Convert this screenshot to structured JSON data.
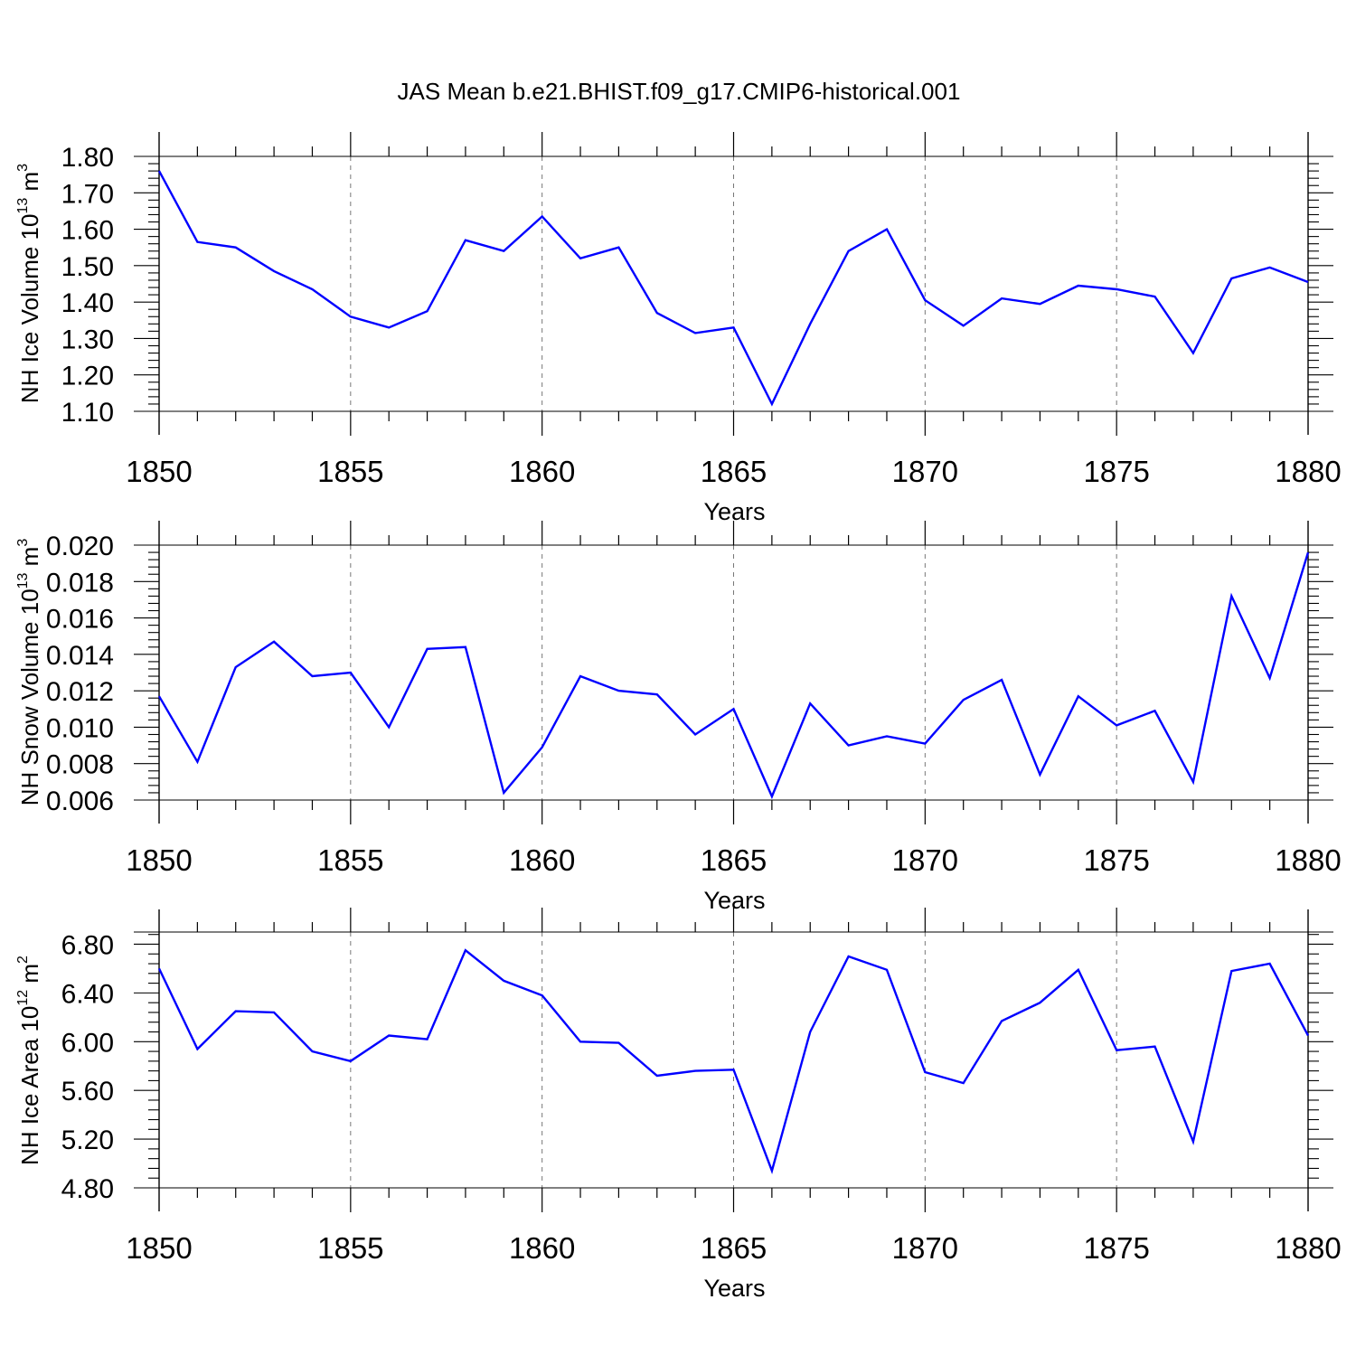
{
  "figure_title": "JAS Mean b.e21.BHIST.f09_g17.CMIP6-historical.001",
  "line_color": "#0000ff",
  "chart_data": [
    {
      "type": "line",
      "title": "JAS Mean b.e21.BHIST.f09_g17.CMIP6-historical.001",
      "xlabel": "Years",
      "ylabel": "NH Ice Volume 10",
      "ylabel_exp": "13",
      "ylabel_unit": " m",
      "ylabel_unit_exp": "3",
      "xlim": [
        1850,
        1880
      ],
      "ylim": [
        1.1,
        1.8
      ],
      "yticks": [
        1.1,
        1.2,
        1.3,
        1.4,
        1.5,
        1.6,
        1.7,
        1.8
      ],
      "ytick_labels": [
        "1.10",
        "1.20",
        "1.30",
        "1.40",
        "1.50",
        "1.60",
        "1.70",
        "1.80"
      ],
      "xticks": [
        1850,
        1855,
        1860,
        1865,
        1870,
        1875,
        1880
      ],
      "xtick_labels": [
        "1850",
        "1855",
        "1860",
        "1865",
        "1870",
        "1875",
        "1880"
      ],
      "grid": "vertical dashed at major x ticks",
      "series": [
        {
          "name": "NH Ice Volume",
          "x": [
            1850,
            1851,
            1852,
            1853,
            1854,
            1855,
            1856,
            1857,
            1858,
            1859,
            1860,
            1861,
            1862,
            1863,
            1864,
            1865,
            1866,
            1867,
            1868,
            1869,
            1870,
            1871,
            1872,
            1873,
            1874,
            1875,
            1876,
            1877,
            1878,
            1879,
            1880
          ],
          "values": [
            1.76,
            1.565,
            1.55,
            1.485,
            1.435,
            1.36,
            1.33,
            1.375,
            1.57,
            1.54,
            1.635,
            1.52,
            1.55,
            1.37,
            1.315,
            1.33,
            1.12,
            1.34,
            1.54,
            1.6,
            1.405,
            1.335,
            1.41,
            1.395,
            1.445,
            1.435,
            1.415,
            1.26,
            1.465,
            1.495,
            1.455
          ]
        }
      ]
    },
    {
      "type": "line",
      "xlabel": "Years",
      "ylabel": "NH Snow Volume 10",
      "ylabel_exp": "13",
      "ylabel_unit": " m",
      "ylabel_unit_exp": "3",
      "xlim": [
        1850,
        1880
      ],
      "ylim": [
        0.006,
        0.02
      ],
      "yticks": [
        0.006,
        0.008,
        0.01,
        0.012,
        0.014,
        0.016,
        0.018,
        0.02
      ],
      "ytick_labels": [
        "0.006",
        "0.008",
        "0.010",
        "0.012",
        "0.014",
        "0.016",
        "0.018",
        "0.020"
      ],
      "xticks": [
        1850,
        1855,
        1860,
        1865,
        1870,
        1875,
        1880
      ],
      "xtick_labels": [
        "1850",
        "1855",
        "1860",
        "1865",
        "1870",
        "1875",
        "1880"
      ],
      "grid": "vertical dashed at major x ticks",
      "series": [
        {
          "name": "NH Snow Volume",
          "x": [
            1850,
            1851,
            1852,
            1853,
            1854,
            1855,
            1856,
            1857,
            1858,
            1859,
            1860,
            1861,
            1862,
            1863,
            1864,
            1865,
            1866,
            1867,
            1868,
            1869,
            1870,
            1871,
            1872,
            1873,
            1874,
            1875,
            1876,
            1877,
            1878,
            1879,
            1880
          ],
          "values": [
            0.0117,
            0.0081,
            0.0133,
            0.0147,
            0.0128,
            0.013,
            0.01,
            0.0143,
            0.0144,
            0.0064,
            0.0089,
            0.0128,
            0.012,
            0.0118,
            0.0096,
            0.011,
            0.0062,
            0.0113,
            0.009,
            0.0095,
            0.0091,
            0.0115,
            0.0126,
            0.0074,
            0.0117,
            0.0101,
            0.0109,
            0.007,
            0.0172,
            0.0127,
            0.0196
          ]
        }
      ]
    },
    {
      "type": "line",
      "xlabel": "Years",
      "ylabel": "NH Ice Area 10",
      "ylabel_exp": "12",
      "ylabel_unit": " m",
      "ylabel_unit_exp": "2",
      "xlim": [
        1850,
        1880
      ],
      "ylim": [
        4.8,
        6.9
      ],
      "yticks": [
        4.8,
        5.2,
        5.6,
        6.0,
        6.4,
        6.8
      ],
      "ytick_labels": [
        "4.80",
        "5.20",
        "5.60",
        "6.00",
        "6.40",
        "6.80"
      ],
      "xticks": [
        1850,
        1855,
        1860,
        1865,
        1870,
        1875,
        1880
      ],
      "xtick_labels": [
        "1850",
        "1855",
        "1860",
        "1865",
        "1870",
        "1875",
        "1880"
      ],
      "grid": "vertical dashed at major x ticks",
      "series": [
        {
          "name": "NH Ice Area",
          "x": [
            1850,
            1851,
            1852,
            1853,
            1854,
            1855,
            1856,
            1857,
            1858,
            1859,
            1860,
            1861,
            1862,
            1863,
            1864,
            1865,
            1866,
            1867,
            1868,
            1869,
            1870,
            1871,
            1872,
            1873,
            1874,
            1875,
            1876,
            1877,
            1878,
            1879,
            1880
          ],
          "values": [
            6.6,
            5.94,
            6.25,
            6.24,
            5.92,
            5.84,
            6.05,
            6.02,
            6.75,
            6.5,
            6.38,
            6.0,
            5.99,
            5.72,
            5.76,
            5.77,
            4.94,
            6.08,
            6.7,
            6.59,
            5.75,
            5.66,
            6.17,
            6.32,
            6.59,
            5.93,
            5.96,
            5.18,
            6.58,
            6.64,
            6.05
          ]
        }
      ]
    }
  ]
}
